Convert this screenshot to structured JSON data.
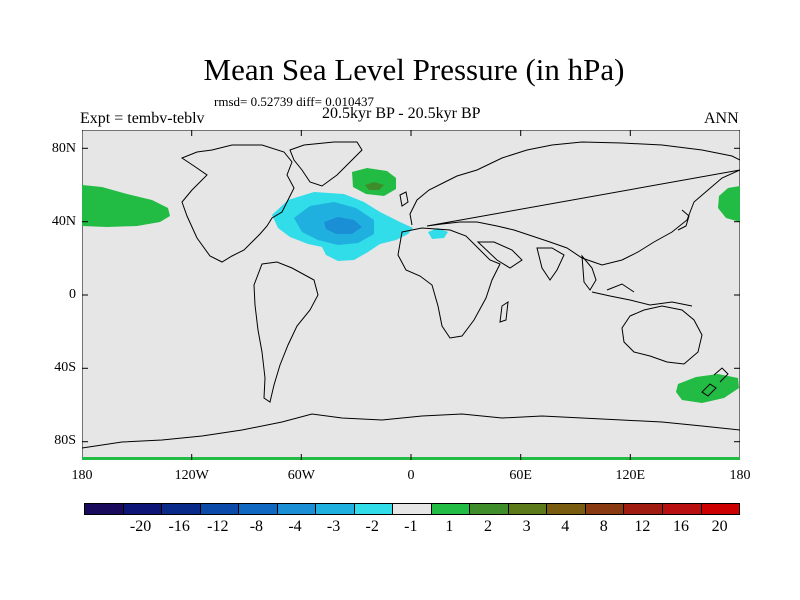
{
  "title": "Mean Sea Level Pressure (in hPa)",
  "stats": "rmsd= 0.52739 diff= 0.010437",
  "left_label": "Expt = tembv-teblv",
  "center_label": "20.5kyr BP - 20.5kyr BP",
  "right_label": "ANN",
  "lat_ticks": [
    "80N",
    "40N",
    "0",
    "40S",
    "80S"
  ],
  "lon_ticks": [
    "180",
    "120W",
    "60W",
    "0",
    "60E",
    "120E",
    "180"
  ],
  "colorbar": {
    "labels": [
      "-20",
      "-16",
      "-12",
      "-8",
      "-4",
      "-3",
      "-2",
      "-1",
      "1",
      "2",
      "3",
      "4",
      "8",
      "12",
      "16",
      "20"
    ],
    "colors": [
      "#1a0a5c",
      "#0d1577",
      "#0a2a8a",
      "#0b4aa8",
      "#1168c0",
      "#1a8fd6",
      "#20b0e0",
      "#30dde8",
      "#e6e6e6",
      "#22bb44",
      "#3f8c2a",
      "#5d7a1a",
      "#7a5c10",
      "#8a3a10",
      "#a01c10",
      "#b81010",
      "#cc0000"
    ]
  },
  "chart_data": {
    "type": "heatmap",
    "title": "Mean Sea Level Pressure (in hPa)",
    "subtitle": "20.5kyr BP - 20.5kyr BP",
    "units": "hPa",
    "rmsd": 0.52739,
    "diff": 0.010437,
    "season": "ANN",
    "experiment": "tembv-teblv",
    "projection": "cylindrical equidistant",
    "lon_range": [
      -180,
      180
    ],
    "lat_range": [
      -90,
      90
    ],
    "contour_levels": [
      -20,
      -16,
      -12,
      -8,
      -4,
      -3,
      -2,
      -1,
      1,
      2,
      3,
      4,
      8,
      12,
      16,
      20
    ],
    "anomaly_regions": [
      {
        "name": "north-atlantic-low",
        "sign": "negative",
        "center_lon": -38,
        "center_lat": 40,
        "min_value_approx": -4
      },
      {
        "name": "north-pacific-west-high",
        "sign": "positive",
        "center_lon": -165,
        "center_lat": 45,
        "max_value_approx": 1.5
      },
      {
        "name": "north-pacific-east-high",
        "sign": "positive",
        "center_lon": 175,
        "center_lat": 45,
        "max_value_approx": 1.5
      },
      {
        "name": "iceland-high",
        "sign": "positive",
        "center_lon": -18,
        "center_lat": 63,
        "max_value_approx": 2.5
      },
      {
        "name": "new-zealand-high",
        "sign": "positive",
        "center_lon": 155,
        "center_lat": -50,
        "max_value_approx": 1.5
      }
    ]
  }
}
